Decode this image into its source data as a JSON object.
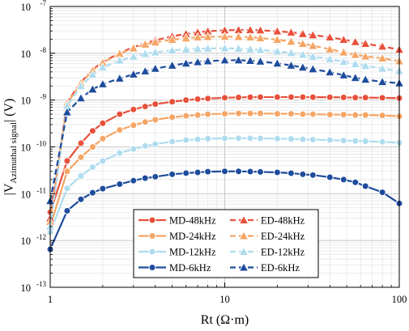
{
  "chart_data": {
    "type": "line",
    "title": "",
    "xlabel": "Rt (Ω·m)",
    "ylabel": {
      "prefix": "|V",
      "subscript": "Azimuthal signal",
      "suffix": "| (V)"
    },
    "x_scale": "log",
    "y_scale": "log",
    "xlim": [
      1,
      100
    ],
    "ylim": [
      1e-13,
      1e-07
    ],
    "x_tick_labels": [
      "1",
      "10",
      "100"
    ],
    "y_tick_labels": [
      {
        "base": "10",
        "exp": "-13"
      },
      {
        "base": "10",
        "exp": "-12"
      },
      {
        "base": "10",
        "exp": "-11"
      },
      {
        "base": "10",
        "exp": "-10"
      },
      {
        "base": "10",
        "exp": "-9"
      },
      {
        "base": "10",
        "exp": "-8"
      },
      {
        "base": "10",
        "exp": "-7"
      }
    ],
    "grid": true,
    "legend_position": "bottom-center",
    "x": [
      1,
      1.25,
      1.5,
      1.75,
      2,
      2.5,
      3,
      3.5,
      4,
      5,
      6,
      7,
      8,
      10,
      12,
      14,
      16,
      20,
      24,
      28,
      32,
      40,
      48,
      56,
      64,
      80,
      100
    ],
    "series": [
      {
        "name": "MD-48kHz",
        "color": "#e8503a",
        "marker": "circle",
        "dash": "solid",
        "values": [
          4e-12,
          5e-11,
          1.2e-10,
          2.2e-10,
          3.2e-10,
          5e-10,
          6.3e-10,
          7.3e-10,
          8.2e-10,
          9.2e-10,
          1e-09,
          1.05e-09,
          1.08e-09,
          1.12e-09,
          1.14e-09,
          1.15e-09,
          1.16e-09,
          1.16e-09,
          1.16e-09,
          1.16e-09,
          1.15e-09,
          1.15e-09,
          1.14e-09,
          1.13e-09,
          1.13e-09,
          1.12e-09,
          1.1e-09
        ]
      },
      {
        "name": "MD-24kHz",
        "color": "#f5a565",
        "marker": "circle",
        "dash": "solid",
        "values": [
          2e-12,
          3e-11,
          6e-11,
          1e-10,
          1.5e-10,
          2.3e-10,
          2.9e-10,
          3.4e-10,
          3.8e-10,
          4.3e-10,
          4.6e-10,
          4.8e-10,
          5e-10,
          5.1e-10,
          5.2e-10,
          5.2e-10,
          5.2e-10,
          5.1e-10,
          5.1e-10,
          5e-10,
          5e-10,
          4.9e-10,
          4.9e-10,
          4.8e-10,
          4.8e-10,
          4.7e-10,
          4.5e-10
        ]
      },
      {
        "name": "MD-12kHz",
        "color": "#aedcee",
        "marker": "circle",
        "dash": "solid",
        "values": [
          1.5e-12,
          1.3e-11,
          2.4e-11,
          3.7e-11,
          5e-11,
          7.4e-11,
          9e-11,
          1.05e-10,
          1.15e-10,
          1.3e-10,
          1.4e-10,
          1.45e-10,
          1.5e-10,
          1.52e-10,
          1.53e-10,
          1.53e-10,
          1.52e-10,
          1.5e-10,
          1.48e-10,
          1.45e-10,
          1.43e-10,
          1.4e-10,
          1.37e-10,
          1.34e-10,
          1.32e-10,
          1.28e-10,
          1.22e-10
        ]
      },
      {
        "name": "MD-6kHz",
        "color": "#1e4c9c",
        "marker": "circle",
        "dash": "solid",
        "values": [
          6.5e-13,
          4.3e-12,
          7.6e-12,
          1.05e-11,
          1.28e-11,
          1.6e-11,
          1.9e-11,
          2.15e-11,
          2.3e-11,
          2.6e-11,
          2.75e-11,
          2.85e-11,
          2.95e-11,
          3e-11,
          3e-11,
          2.97e-11,
          2.92e-11,
          2.85e-11,
          2.74e-11,
          2.6e-11,
          2.5e-11,
          2.25e-11,
          2e-11,
          1.75e-11,
          1.45e-11,
          1.07e-11,
          6.2e-12
        ]
      },
      {
        "name": "ED-48kHz",
        "color": "#e8503a",
        "marker": "triangle",
        "dash": "dashed",
        "values": [
          3e-12,
          9e-10,
          2.4e-09,
          4.5e-09,
          6.5e-09,
          1.02e-08,
          1.35e-08,
          1.65e-08,
          1.9e-08,
          2.3e-08,
          2.6e-08,
          2.8e-08,
          2.95e-08,
          3.1e-08,
          3.15e-08,
          3.15e-08,
          3.1e-08,
          2.95e-08,
          2.8e-08,
          2.6e-08,
          2.45e-08,
          2.2e-08,
          1.95e-08,
          1.75e-08,
          1.6e-08,
          1.4e-08,
          1.2e-08
        ]
      },
      {
        "name": "ED-24kHz",
        "color": "#f5a565",
        "marker": "triangle",
        "dash": "dashed",
        "values": [
          2.5e-12,
          8.5e-10,
          2.3e-09,
          4.3e-09,
          6.3e-09,
          9.8e-09,
          1.28e-08,
          1.55e-08,
          1.72e-08,
          1.95e-08,
          2.1e-08,
          2.2e-08,
          2.25e-08,
          2.27e-08,
          2.25e-08,
          2.2e-08,
          2.12e-08,
          1.95e-08,
          1.78e-08,
          1.6e-08,
          1.45e-08,
          1.22e-08,
          1.05e-08,
          9.3e-09,
          8.6e-09,
          7.8e-09,
          6.8e-09
        ]
      },
      {
        "name": "ED-12kHz",
        "color": "#aedcee",
        "marker": "triangle",
        "dash": "dashed",
        "values": [
          2e-12,
          7.5e-10,
          2e-09,
          3.5e-09,
          5e-09,
          7e-09,
          8.5e-09,
          9.8e-09,
          1.05e-08,
          1.15e-08,
          1.22e-08,
          1.25e-08,
          1.27e-08,
          1.28e-08,
          1.26e-08,
          1.22e-08,
          1.18e-08,
          1.1e-08,
          1.02e-08,
          9.4e-09,
          8.5e-09,
          7.5e-09,
          6.6e-09,
          5.9e-09,
          5.4e-09,
          4.7e-09,
          4.2e-09
        ]
      },
      {
        "name": "ED-6kHz",
        "color": "#1e4c9c",
        "marker": "triangle",
        "dash": "dashed",
        "values": [
          7e-12,
          5.5e-10,
          1.1e-09,
          1.7e-09,
          2.2e-09,
          2.9e-09,
          3.55e-09,
          4.15e-09,
          4.7e-09,
          5.5e-09,
          6.1e-09,
          6.5e-09,
          6.8e-09,
          7.1e-09,
          7.1e-09,
          6.95e-09,
          6.7e-09,
          6.1e-09,
          5.5e-09,
          5e-09,
          4.6e-09,
          3.95e-09,
          3.4e-09,
          3e-09,
          2.75e-09,
          2.45e-09,
          2.3e-09
        ]
      }
    ]
  }
}
